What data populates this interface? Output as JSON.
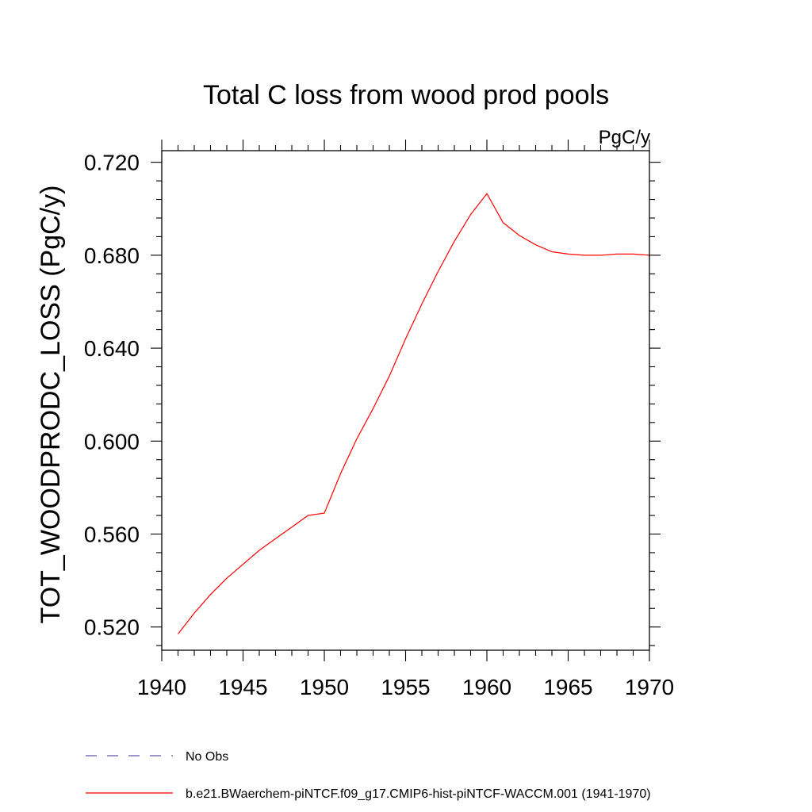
{
  "chart_data": {
    "type": "line",
    "title": "Total C loss from wood prod pools",
    "units": "PgC/y",
    "xlabel": "",
    "ylabel": "TOT_WOODPRODC_LOSS  (PgC/y)",
    "xlim": [
      1940,
      1970
    ],
    "ylim": [
      0.51,
      0.725
    ],
    "x_ticks": [
      1940,
      1945,
      1950,
      1955,
      1960,
      1965,
      1970
    ],
    "x_tick_labels": [
      "1940",
      "1945",
      "1950",
      "1955",
      "1960",
      "1965",
      "1970"
    ],
    "y_ticks": [
      0.52,
      0.56,
      0.6,
      0.64,
      0.68,
      0.72
    ],
    "y_tick_labels": [
      "0.520",
      "0.560",
      "0.600",
      "0.640",
      "0.680",
      "0.720"
    ],
    "grid": false,
    "legend_position": "bottom-left",
    "series": [
      {
        "name": "No Obs",
        "color": "#6655aa",
        "style": "dashed",
        "x": [],
        "y": []
      },
      {
        "name": "b.e21.BWaerchem-piNTCF.f09_g17.CMIP6-hist-piNTCF-WACCM.001 (1941-1970)",
        "color": "#ff0000",
        "style": "solid",
        "x": [
          1941,
          1942,
          1943,
          1944,
          1945,
          1946,
          1947,
          1948,
          1949,
          1950,
          1951,
          1952,
          1953,
          1954,
          1955,
          1956,
          1957,
          1958,
          1959,
          1960,
          1961,
          1962,
          1963,
          1964,
          1965,
          1966,
          1967,
          1968,
          1969,
          1970
        ],
        "y": [
          0.517,
          0.526,
          0.534,
          0.541,
          0.547,
          0.553,
          0.558,
          0.563,
          0.568,
          0.569,
          0.586,
          0.601,
          0.614,
          0.628,
          0.644,
          0.659,
          0.673,
          0.686,
          0.6975,
          0.7065,
          0.694,
          0.6885,
          0.6845,
          0.6815,
          0.6805,
          0.68,
          0.68,
          0.6805,
          0.6805,
          0.68
        ]
      }
    ]
  }
}
